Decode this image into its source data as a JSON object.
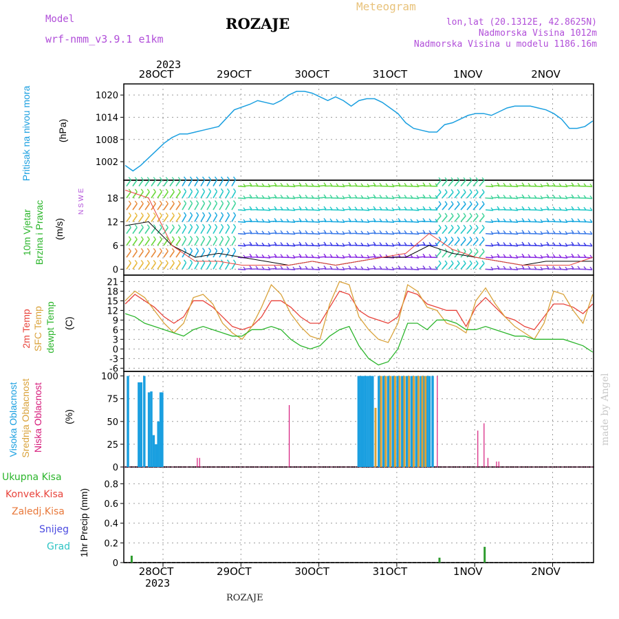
{
  "header": {
    "model_label": "Model",
    "model_name": "wrf-nmm_v3.9.1  e1km",
    "station": "ROZAJE",
    "meteogram": "Meteogram",
    "lonlat": "lon,lat (20.1312E, 42.8625N)",
    "elevation": "Nadmorska Visina 1012m",
    "model_elevation": "Nadmorska Visina u modelu 1186.16m",
    "year_top": "2023",
    "year_bottom": "2023",
    "footer_station": "ROZAJE",
    "credit": "made by Angel"
  },
  "colors": {
    "pressure": "#1a9fe0",
    "temp2m": "#e8423a",
    "sfc": "#d9a23a",
    "dewpt": "#2bb52b",
    "high_cloud": "#1a9fe0",
    "mid_cloud": "#d9a23a",
    "low_cloud": "#d6197a",
    "precip": "#2e9c2e",
    "label_purple": "#b14fd9",
    "grid": "#999999"
  },
  "chart_data": [
    {
      "type": "line",
      "name": "pressure",
      "ylabel_lines": [
        "Pritisak na nivou mora",
        "(hPa)"
      ],
      "ylim": [
        997,
        1023
      ],
      "yticks": [
        "1020",
        "1014",
        "1008",
        "1002"
      ],
      "xlim": [
        0,
        6.05
      ],
      "xticks": [
        "28OCT",
        "29OCT",
        "30OCT",
        "31OCT",
        "1NOV",
        "2NOV"
      ],
      "grid": true,
      "x": [
        0,
        0.1,
        0.2,
        0.3,
        0.4,
        0.5,
        0.6,
        0.7,
        0.8,
        0.9,
        1.0,
        1.2,
        1.4,
        1.6,
        1.7,
        1.8,
        1.9,
        2.0,
        2.1,
        2.2,
        2.3,
        2.4,
        2.5,
        2.6,
        2.7,
        2.8,
        2.9,
        3.0,
        3.1,
        3.2,
        3.3,
        3.4,
        3.5,
        3.6,
        3.7,
        3.8,
        3.9,
        4.0,
        4.1,
        4.2,
        4.3,
        4.4,
        4.5,
        4.6,
        4.7,
        4.8,
        4.9,
        5.0,
        5.1,
        5.2,
        5.3,
        5.4,
        5.5,
        5.6,
        5.7,
        5.8,
        5.9,
        6.0
      ],
      "values": [
        1001,
        999.5,
        1001,
        1003,
        1005,
        1007,
        1008.5,
        1009.5,
        1009.5,
        1010,
        1010.5,
        1011.5,
        1016,
        1017.5,
        1018.5,
        1018,
        1017.5,
        1018.5,
        1020,
        1021,
        1021,
        1020.5,
        1019.5,
        1018.5,
        1019.5,
        1018.5,
        1017,
        1018.5,
        1019,
        1019,
        1018,
        1016.5,
        1015,
        1012.5,
        1011,
        1010.5,
        1010,
        1010,
        1012,
        1012.5,
        1013.5,
        1014.5,
        1015,
        1015,
        1014.5,
        1015.5,
        1016.5,
        1017,
        1017,
        1017,
        1016.5,
        1016,
        1015,
        1013.5,
        1011,
        1011,
        1011.5,
        1013
      ]
    },
    {
      "type": "line",
      "name": "wind",
      "ylabel_lines": [
        "10m Vjetar",
        "Brzina i Pravac",
        "(m/s)"
      ],
      "compass": "N  S  W  E",
      "ylim": [
        -1.5,
        22.5
      ],
      "yticks": [
        "18",
        "12",
        "6",
        "0"
      ],
      "xticks": [
        "28OCT",
        "29OCT",
        "30OCT",
        "31OCT",
        "1NOV",
        "2NOV"
      ],
      "barb_levels": [
        0,
        3,
        6,
        9,
        12,
        15,
        18,
        21
      ],
      "series": [
        {
          "name": "wind speed",
          "x": [
            0,
            0.3,
            0.6,
            0.9,
            1.2,
            1.5,
            1.8,
            2.1,
            2.4,
            2.7,
            3.0,
            3.3,
            3.6,
            3.9,
            4.2,
            4.5,
            4.8,
            5.1,
            5.4,
            5.7,
            6.0
          ],
          "values": [
            11,
            12,
            6,
            3,
            4,
            3,
            2,
            1,
            2,
            1,
            2,
            3,
            3,
            6,
            4,
            3,
            2,
            1,
            2,
            2,
            2
          ]
        },
        {
          "name": "wind gust",
          "x": [
            0,
            0.3,
            0.6,
            0.9,
            1.2,
            1.5,
            1.8,
            2.1,
            2.4,
            2.7,
            3.0,
            3.3,
            3.6,
            3.9,
            4.2,
            4.5,
            4.8,
            5.1,
            5.4,
            5.7,
            6.0
          ],
          "values": [
            20,
            18,
            6,
            2,
            2,
            1,
            1,
            1,
            2,
            1,
            2,
            3,
            4,
            9,
            5,
            3,
            2,
            1,
            1,
            1,
            3
          ]
        }
      ]
    },
    {
      "type": "line",
      "name": "temperature",
      "ylabel_lines": [
        "2m Temp",
        "SFC Temp",
        "dewpt Temp",
        "(C)"
      ],
      "ylim": [
        -7,
        23
      ],
      "yticks": [
        "21",
        "18",
        "15",
        "12",
        "9",
        "6",
        "3",
        "0",
        "-3",
        "-6"
      ],
      "xticks": [
        "28OCT",
        "29OCT",
        "30OCT",
        "31OCT",
        "1NOV",
        "2NOV"
      ],
      "x": [
        0,
        0.125,
        0.25,
        0.375,
        0.5,
        0.625,
        0.75,
        0.875,
        1.0,
        1.125,
        1.25,
        1.375,
        1.5,
        1.625,
        1.75,
        1.875,
        2.0,
        2.125,
        2.25,
        2.375,
        2.5,
        2.625,
        2.75,
        2.875,
        3.0,
        3.125,
        3.25,
        3.375,
        3.5,
        3.625,
        3.75,
        3.875,
        4.0,
        4.125,
        4.25,
        4.375,
        4.5,
        4.625,
        4.75,
        4.875,
        5.0,
        5.125,
        5.25,
        5.375,
        5.5,
        5.625,
        5.75,
        5.875,
        6.0
      ],
      "series": [
        {
          "name": "2m Temp",
          "values": [
            14,
            17,
            15,
            13,
            10,
            8,
            10,
            15,
            15,
            13,
            10,
            7,
            6,
            7,
            10,
            15,
            15,
            13,
            10,
            8,
            8,
            13,
            18,
            17,
            12,
            10,
            9,
            8,
            10,
            18,
            17,
            14,
            13,
            12,
            12,
            7,
            13,
            16,
            13,
            10,
            9,
            7,
            6,
            10,
            14,
            14,
            13,
            11,
            14
          ]
        },
        {
          "name": "SFC Temp",
          "values": [
            15,
            18,
            16,
            12,
            8,
            5,
            8,
            16,
            17,
            14,
            8,
            5,
            3,
            7,
            13,
            20,
            17,
            11,
            7,
            4,
            3,
            14,
            21,
            20,
            10,
            6,
            3,
            2,
            8,
            20,
            18,
            13,
            12,
            8,
            7,
            5,
            15,
            19,
            14,
            10,
            7,
            5,
            3,
            8,
            18,
            17,
            12,
            8,
            17
          ]
        },
        {
          "name": "dewpt Temp",
          "values": [
            11,
            10,
            8,
            7,
            6,
            5,
            4,
            6,
            7,
            6,
            5,
            4,
            4,
            6,
            6,
            7,
            6,
            3,
            1,
            0,
            1,
            4,
            6,
            7,
            1,
            -3,
            -5,
            -4,
            0,
            8,
            8,
            6,
            9,
            9,
            8,
            6,
            6,
            7,
            6,
            5,
            4,
            4,
            3,
            3,
            3,
            3,
            2,
            1,
            -1
          ]
        }
      ]
    },
    {
      "type": "bar",
      "name": "cloud cover",
      "ylabel_lines": [
        "Visoka Oblacnost",
        "Srednja Oblacnost",
        "Niska Oblacnost",
        "(%)"
      ],
      "ylim": [
        0,
        105
      ],
      "yticks": [
        "100",
        "75",
        "50",
        "25",
        "0"
      ],
      "xticks": [
        "28OCT",
        "29OCT",
        "30OCT",
        "31OCT",
        "1NOV",
        "2NOV"
      ],
      "series": [
        {
          "name": "Visoka Oblacnost",
          "x": [
            0.02,
            0.16,
            0.19,
            0.23,
            0.29,
            0.32,
            0.35,
            0.38,
            0.41,
            0.44,
            0.46,
            2.98,
            3.01,
            3.04,
            3.07,
            3.1,
            3.13,
            3.16,
            3.24,
            3.3,
            3.36,
            3.42,
            3.48,
            3.54,
            3.6,
            3.66,
            3.72,
            3.78,
            3.82,
            3.86,
            3.89,
            3.93
          ],
          "values": [
            100,
            93,
            93,
            100,
            82,
            83,
            35,
            25,
            50,
            82,
            82,
            100,
            100,
            100,
            100,
            100,
            100,
            100,
            100,
            100,
            100,
            100,
            100,
            100,
            100,
            100,
            100,
            100,
            100,
            100,
            100,
            100
          ]
        },
        {
          "name": "Srednja Oblacnost",
          "x": [
            3.2,
            3.27,
            3.33,
            3.39,
            3.45,
            3.51,
            3.57,
            3.63,
            3.69,
            3.75,
            3.8,
            3.84
          ],
          "values": [
            65,
            100,
            100,
            100,
            100,
            100,
            100,
            100,
            100,
            100,
            100,
            100
          ]
        },
        {
          "name": "Niska Oblacnost",
          "x": [
            0.92,
            0.95,
            2.1,
            4.0,
            4.52,
            4.6,
            4.65,
            4.76,
            4.79
          ],
          "values": [
            10,
            10,
            68,
            100,
            40,
            48,
            10,
            6,
            6
          ]
        }
      ]
    },
    {
      "type": "bar",
      "name": "precipitation",
      "ylabel_lines": [
        "1hr Precip (mm)"
      ],
      "legend": [
        "Ukupna Kisa",
        "Konvek.Kisa",
        "Zaledj.Kisa",
        "Snijeg",
        "Grad"
      ],
      "ylim": [
        0,
        0.97
      ],
      "yticks": [
        "0.8",
        "0.6",
        "0.4",
        "0.2",
        "0"
      ],
      "xticks": [
        "28OCT",
        "29OCT",
        "30OCT",
        "31OCT",
        "1NOV",
        "2NOV"
      ],
      "x": [
        0.07,
        4.02,
        4.6
      ],
      "values": [
        0.07,
        0.05,
        0.16
      ]
    }
  ]
}
